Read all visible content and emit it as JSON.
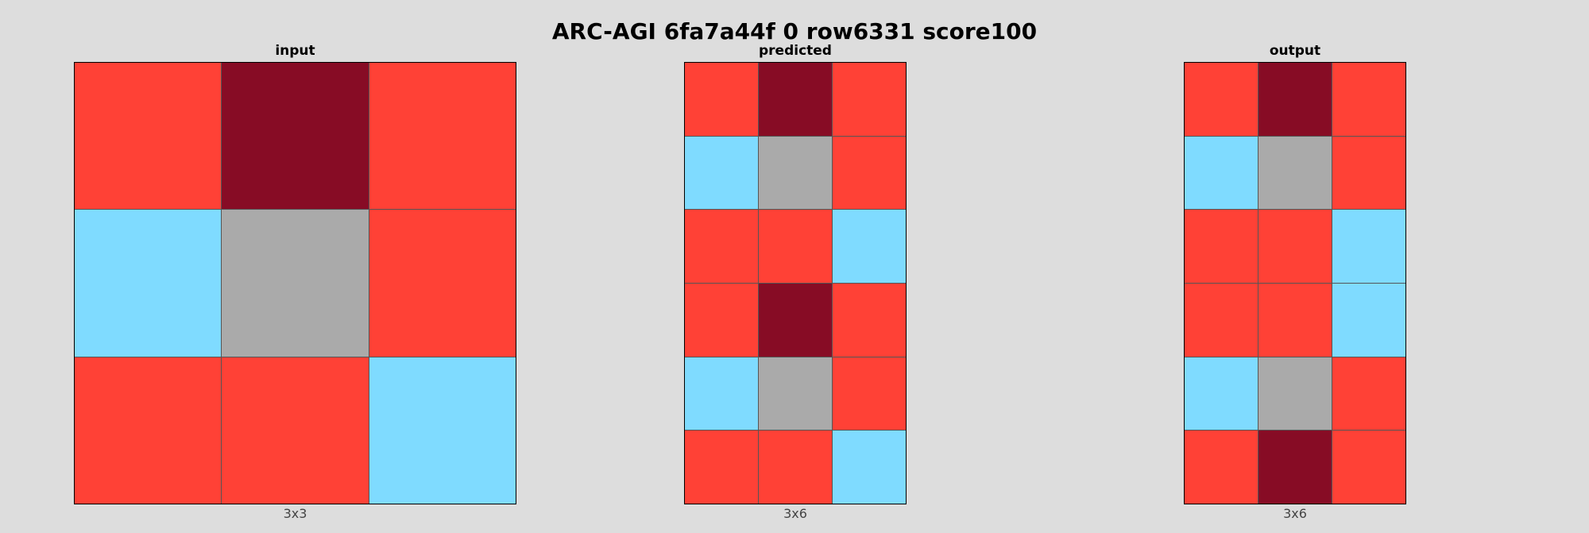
{
  "title": "ARC-AGI 6fa7a44f 0 row6331 score100",
  "palette": {
    "2": "#ff4136",
    "5": "#aaaaaa",
    "8": "#7fdbff",
    "9": "#870c25"
  },
  "panels": [
    {
      "label": "input",
      "size_label": "3x3",
      "grid": [
        [
          2,
          9,
          2
        ],
        [
          8,
          5,
          2
        ],
        [
          2,
          2,
          8
        ]
      ]
    },
    {
      "label": "predicted",
      "size_label": "3x6",
      "grid": [
        [
          2,
          9,
          2
        ],
        [
          8,
          5,
          2
        ],
        [
          2,
          2,
          8
        ],
        [
          2,
          9,
          2
        ],
        [
          8,
          5,
          2
        ],
        [
          2,
          2,
          8
        ]
      ]
    },
    {
      "label": "output",
      "size_label": "3x6",
      "grid": [
        [
          2,
          9,
          2
        ],
        [
          8,
          5,
          2
        ],
        [
          2,
          2,
          8
        ],
        [
          2,
          2,
          8
        ],
        [
          8,
          5,
          2
        ],
        [
          2,
          9,
          2
        ]
      ]
    }
  ]
}
